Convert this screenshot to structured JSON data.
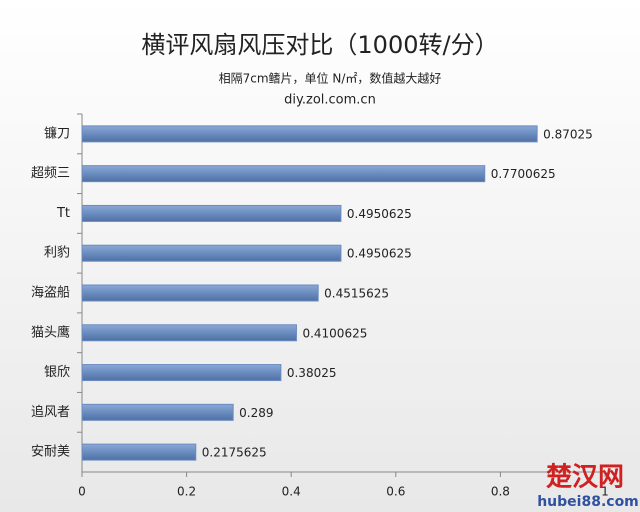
{
  "chart_data": {
    "type": "bar",
    "orientation": "horizontal",
    "title": "横评风扇风压对比（1000转/分）",
    "subtitle": "相隔7cm鳍片，单位 N/㎡，数值越大越好",
    "source": "diy.zol.com.cn",
    "categories": [
      "镰刀",
      "超频三",
      "Tt",
      "利豹",
      "海盗船",
      "猫头鹰",
      "银欣",
      "追风者",
      "安耐美"
    ],
    "values": [
      0.87025,
      0.7700625,
      0.4950625,
      0.4950625,
      0.4515625,
      0.4100625,
      0.38025,
      0.289,
      0.2175625
    ],
    "color": "#6a8cbf",
    "xlim": [
      0,
      1
    ],
    "xticks": [
      0,
      0.2,
      0.4,
      0.6,
      0.8,
      1
    ],
    "watermark": [
      "楚汉网",
      "hubei88.com"
    ]
  }
}
